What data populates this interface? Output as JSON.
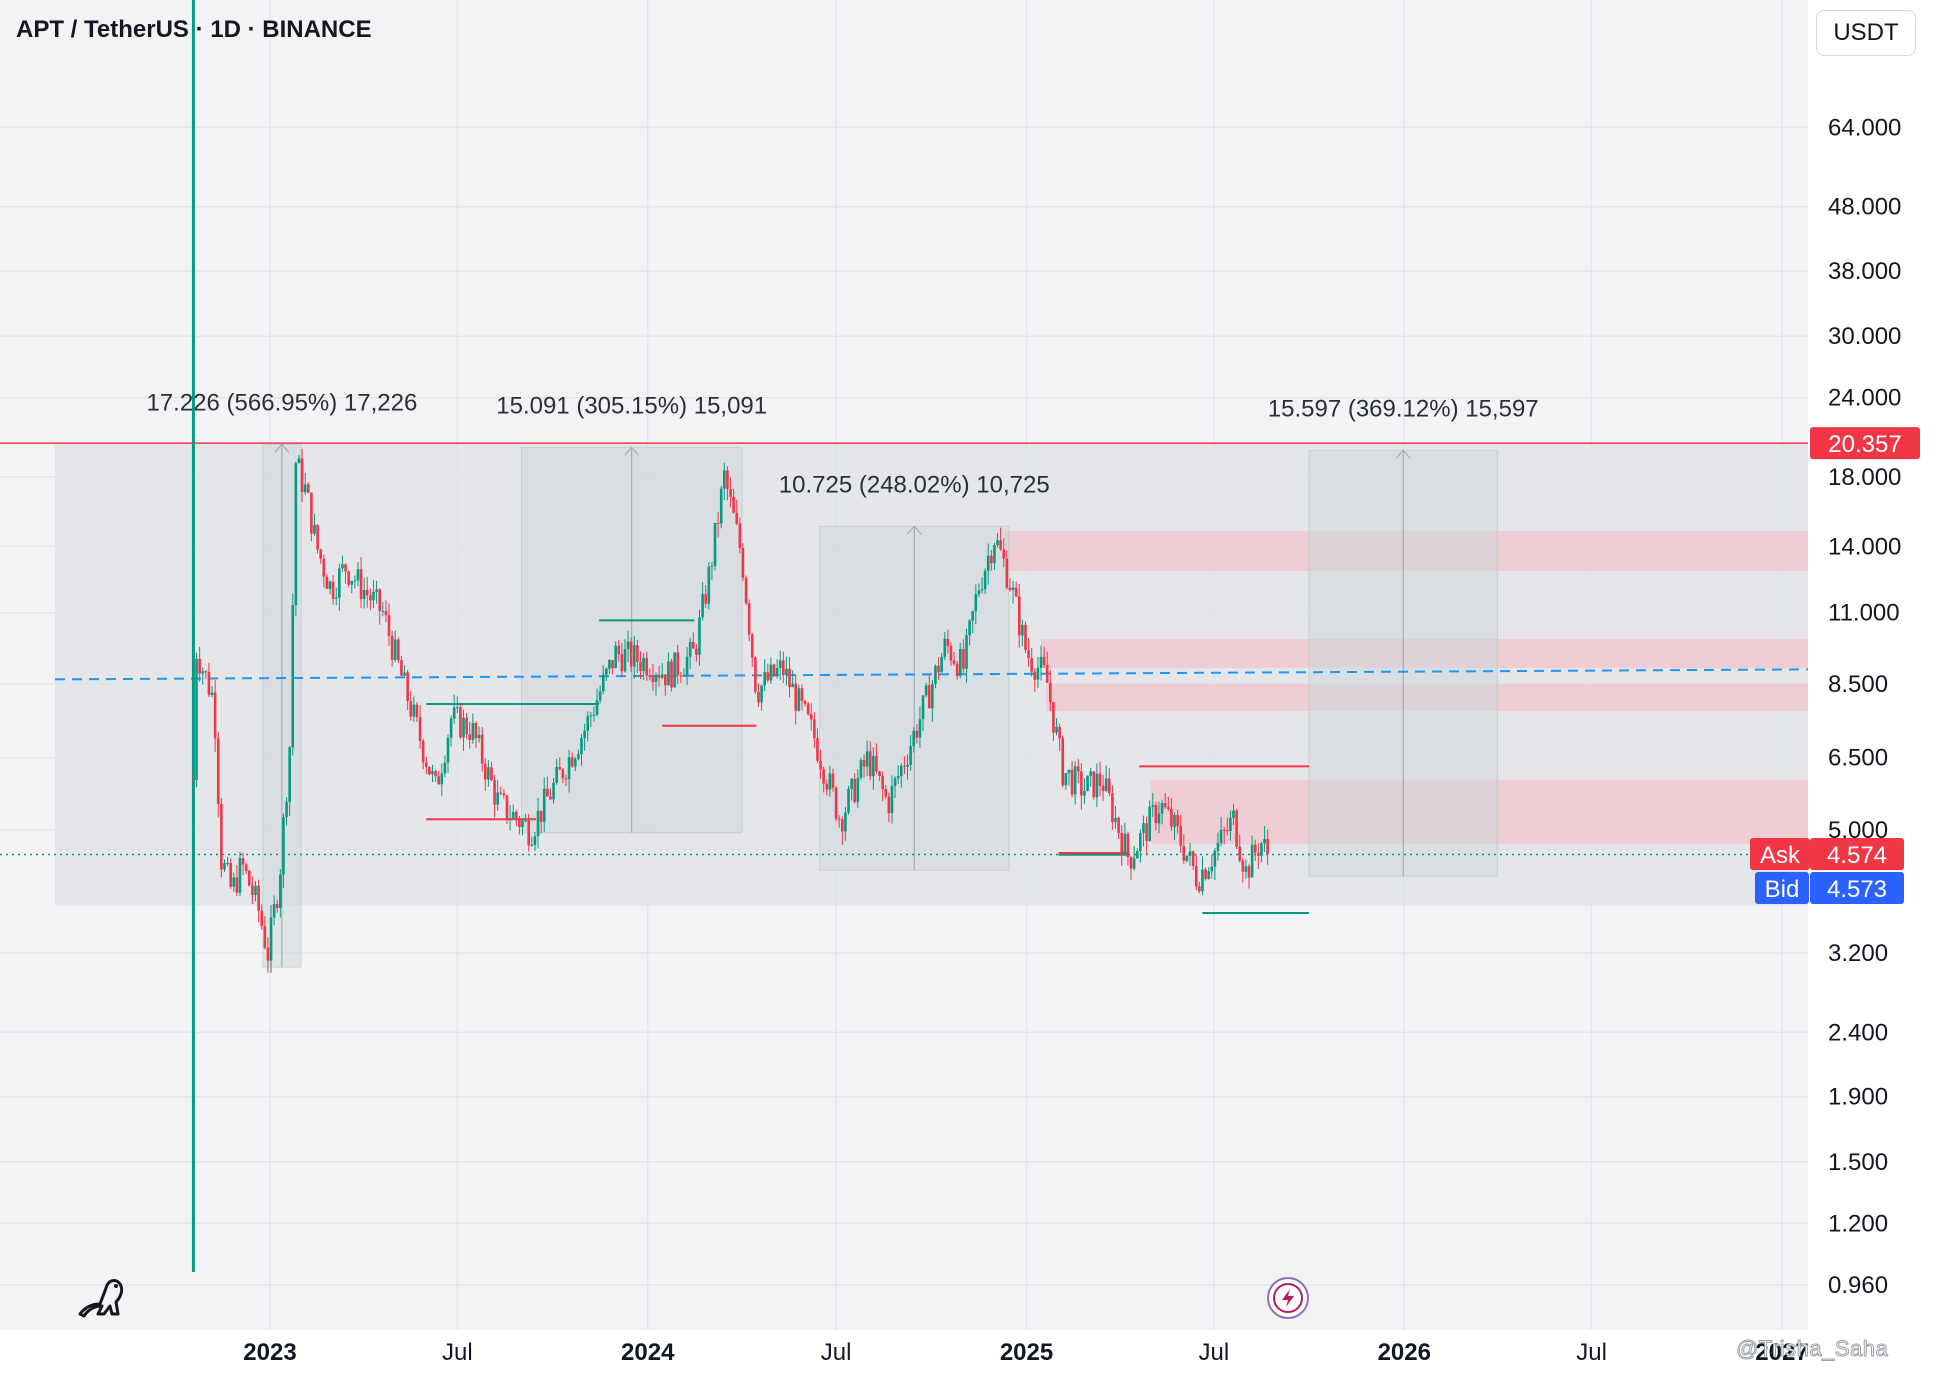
{
  "header": {
    "title": "APT / TetherUS · 1D · BINANCE",
    "currency_label": "USDT"
  },
  "watermark": "@Trisha_Saha",
  "icons": [
    "tradingview-logo-icon",
    "lightning-icon"
  ],
  "colors": {
    "up": "#089981",
    "down": "#f23645",
    "ask": "#f23645",
    "bid": "#2962ff",
    "dashed_line": "#2196f3",
    "zone_fill": "#dfe1e6",
    "supply_fill": "#f2c6cc"
  },
  "chart_data": {
    "type": "candlestick",
    "scale": "log",
    "y_ticks": [
      "0.960",
      "1.200",
      "1.500",
      "1.900",
      "2.400",
      "3.200",
      "5.000",
      "6.500",
      "8.500",
      "11.000",
      "14.000",
      "18.000",
      "24.000",
      "30.000",
      "38.000",
      "48.000",
      "64.000"
    ],
    "y_tick_values": [
      0.96,
      1.2,
      1.5,
      1.9,
      2.4,
      3.2,
      5.0,
      6.5,
      8.5,
      11.0,
      14.0,
      18.0,
      24.0,
      30.0,
      38.0,
      48.0,
      64.0
    ],
    "x_ticks": [
      {
        "label": "2023",
        "date": "2023-01-01",
        "bold": true
      },
      {
        "label": "Jul",
        "date": "2023-07-01",
        "bold": false
      },
      {
        "label": "2024",
        "date": "2024-01-01",
        "bold": true
      },
      {
        "label": "Jul",
        "date": "2024-07-01",
        "bold": false
      },
      {
        "label": "2025",
        "date": "2025-01-01",
        "bold": true
      },
      {
        "label": "Jul",
        "date": "2025-07-01",
        "bold": false
      },
      {
        "label": "2026",
        "date": "2026-01-01",
        "bold": true
      },
      {
        "label": "Jul",
        "date": "2026-07-01",
        "bold": false
      },
      {
        "label": "2027",
        "date": "2027-01-01",
        "bold": true
      }
    ],
    "price_path": [
      [
        "2022-10-19",
        6.0
      ],
      [
        "2022-10-22",
        9.6
      ],
      [
        "2022-10-30",
        8.8
      ],
      [
        "2022-11-08",
        8.0
      ],
      [
        "2022-11-15",
        4.5
      ],
      [
        "2022-11-25",
        4.0
      ],
      [
        "2022-12-05",
        4.4
      ],
      [
        "2022-12-20",
        3.8
      ],
      [
        "2022-12-30",
        3.2
      ],
      [
        "2023-01-10",
        4.2
      ],
      [
        "2023-01-20",
        6.8
      ],
      [
        "2023-01-26",
        19.0
      ],
      [
        "2023-02-05",
        17.0
      ],
      [
        "2023-02-15",
        14.0
      ],
      [
        "2023-03-01",
        12.0
      ],
      [
        "2023-03-15",
        13.0
      ],
      [
        "2023-04-01",
        12.0
      ],
      [
        "2023-04-20",
        11.0
      ],
      [
        "2023-05-10",
        8.5
      ],
      [
        "2023-06-10",
        5.8
      ],
      [
        "2023-06-25",
        7.5
      ],
      [
        "2023-07-15",
        7.2
      ],
      [
        "2023-08-10",
        5.5
      ],
      [
        "2023-09-10",
        5.0
      ],
      [
        "2023-10-01",
        5.8
      ],
      [
        "2023-11-01",
        7.2
      ],
      [
        "2023-12-01",
        9.5
      ],
      [
        "2024-01-01",
        9.2
      ],
      [
        "2024-01-20",
        8.8
      ],
      [
        "2024-02-15",
        9.5
      ],
      [
        "2024-03-01",
        12.8
      ],
      [
        "2024-03-15",
        18.0
      ],
      [
        "2024-04-01",
        13.5
      ],
      [
        "2024-04-15",
        8.3
      ],
      [
        "2024-05-10",
        9.0
      ],
      [
        "2024-06-10",
        7.0
      ],
      [
        "2024-07-05",
        5.2
      ],
      [
        "2024-08-01",
        6.5
      ],
      [
        "2024-08-20",
        5.5
      ],
      [
        "2024-09-20",
        7.5
      ],
      [
        "2024-10-15",
        9.8
      ],
      [
        "2024-11-01",
        9.0
      ],
      [
        "2024-11-15",
        12.0
      ],
      [
        "2024-12-01",
        14.5
      ],
      [
        "2024-12-15",
        12.5
      ],
      [
        "2025-01-01",
        9.5
      ],
      [
        "2025-01-20",
        8.7
      ],
      [
        "2025-02-05",
        6.2
      ],
      [
        "2025-02-25",
        5.8
      ],
      [
        "2025-03-15",
        6.0
      ],
      [
        "2025-04-10",
        4.5
      ],
      [
        "2025-05-10",
        5.5
      ],
      [
        "2025-05-25",
        5.0
      ],
      [
        "2025-06-15",
        4.2
      ],
      [
        "2025-07-01",
        4.6
      ],
      [
        "2025-07-20",
        5.2
      ],
      [
        "2025-08-01",
        4.3
      ],
      [
        "2025-08-15",
        4.8
      ],
      [
        "2025-08-23",
        4.57
      ]
    ],
    "current_price": 4.574,
    "bid": 4.573,
    "ask_label": "Ask",
    "bid_label": "Bid",
    "resistance_label": "20.357",
    "resistance_value": 20.357,
    "dashed_line_value": 8.7,
    "range_zone": {
      "start": "2022-09-01",
      "end": "2026-12-31",
      "low": 3.8,
      "high": 20.357
    },
    "supply_zones": [
      {
        "start": "2024-12-10",
        "end": "2026-12-31",
        "low": 12.8,
        "high": 14.8
      },
      {
        "start": "2025-01-15",
        "end": "2026-12-31",
        "low": 9.0,
        "high": 10.0
      },
      {
        "start": "2025-01-20",
        "end": "2026-12-31",
        "low": 7.7,
        "high": 8.5
      },
      {
        "start": "2025-05-01",
        "end": "2026-12-31",
        "low": 4.75,
        "high": 6.0
      }
    ],
    "measure_boxes": [
      {
        "label": "17.226 (566.95%) 17,226",
        "start": "2022-12-25",
        "end": "2023-01-31",
        "low": 3.04,
        "high": 20.27
      },
      {
        "label": "15.091 (305.15%) 15,091",
        "start": "2023-09-01",
        "end": "2024-04-01",
        "low": 4.95,
        "high": 20.04
      },
      {
        "label": "10.725 (248.02%) 10,725",
        "start": "2024-06-15",
        "end": "2024-12-15",
        "low": 4.32,
        "high": 15.05
      },
      {
        "label": "15.597 (369.12%) 15,597",
        "start": "2025-10-01",
        "end": "2026-04-01",
        "low": 4.23,
        "high": 19.83
      }
    ],
    "horizontal_segments": [
      {
        "start": "2023-06-01",
        "end": "2023-11-15",
        "value": 7.9,
        "color": "up"
      },
      {
        "start": "2023-06-01",
        "end": "2023-09-15",
        "value": 5.2,
        "color": "down"
      },
      {
        "start": "2023-11-15",
        "end": "2024-02-15",
        "value": 10.7,
        "color": "up"
      },
      {
        "start": "2024-01-15",
        "end": "2024-04-15",
        "value": 7.3,
        "color": "down"
      },
      {
        "start": "2025-02-01",
        "end": "2025-04-10",
        "value": 4.57,
        "color": "up"
      },
      {
        "start": "2025-02-01",
        "end": "2025-04-10",
        "value": 4.6,
        "color": "down"
      },
      {
        "start": "2025-04-20",
        "end": "2025-10-01",
        "value": 6.3,
        "color": "down"
      },
      {
        "start": "2025-06-20",
        "end": "2025-10-01",
        "value": 3.7,
        "color": "up"
      }
    ],
    "vertical_marker_date": "2022-10-19"
  }
}
